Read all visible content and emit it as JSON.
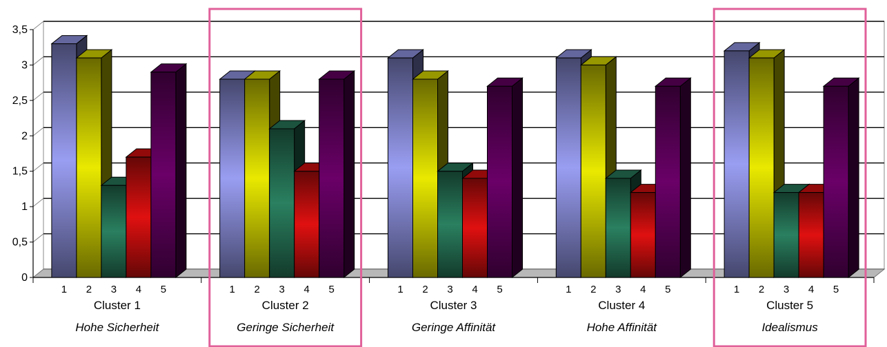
{
  "chart_data": {
    "type": "bar",
    "style": "3d-clustered-column",
    "ylim": [
      0,
      3.5
    ],
    "yticks": [
      "0",
      "0,5",
      "1",
      "1,5",
      "2",
      "2,5",
      "3",
      "3,5"
    ],
    "grid": true,
    "bar_labels": [
      "1",
      "2",
      "3",
      "4",
      "5"
    ],
    "series_colors": [
      "#9a9ef2",
      "#e9e900",
      "#2a8060",
      "#e01010",
      "#6a0068"
    ],
    "clusters": [
      {
        "label": "Cluster 1",
        "subtitle": "Hohe Sicherheit",
        "values": [
          3.3,
          3.1,
          1.3,
          1.7,
          2.9
        ],
        "highlighted": false
      },
      {
        "label": "Cluster 2",
        "subtitle": "Geringe Sicherheit",
        "values": [
          2.8,
          2.8,
          2.1,
          1.5,
          2.8
        ],
        "highlighted": true
      },
      {
        "label": "Cluster 3",
        "subtitle": "Geringe Affinität",
        "values": [
          3.1,
          2.8,
          1.5,
          1.4,
          2.7
        ],
        "highlighted": false
      },
      {
        "label": "Cluster 4",
        "subtitle": "Hohe Affinität",
        "values": [
          3.1,
          3.0,
          1.4,
          1.2,
          2.7
        ],
        "highlighted": false
      },
      {
        "label": "Cluster 5",
        "subtitle": "Idealismus",
        "values": [
          3.2,
          3.1,
          1.2,
          1.2,
          2.7
        ],
        "highlighted": true
      }
    ],
    "highlight_color": "#e0609a"
  }
}
